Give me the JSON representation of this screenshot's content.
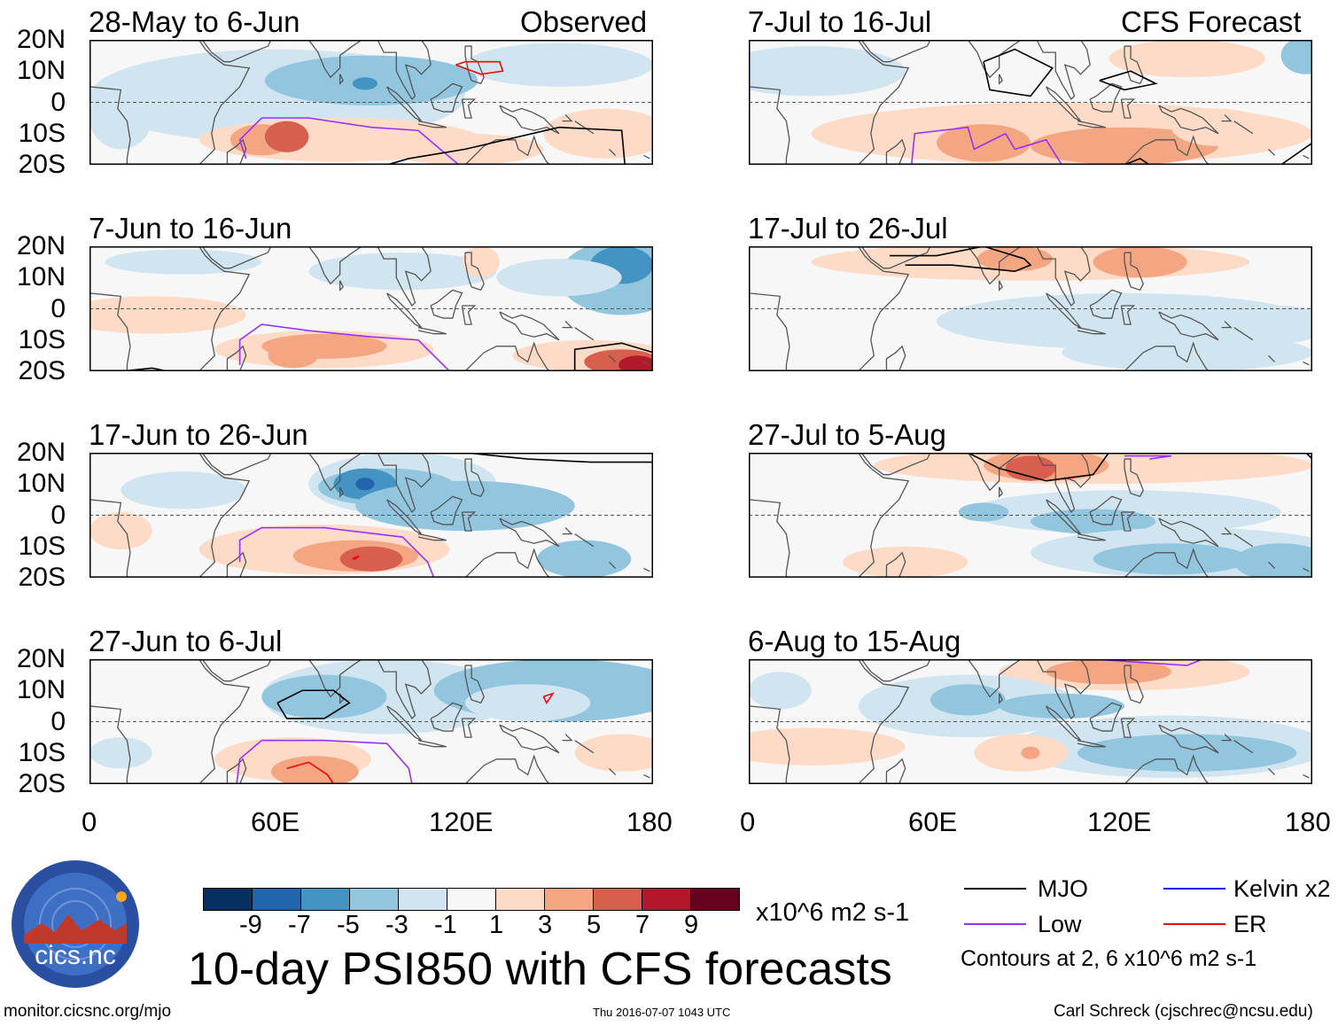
{
  "observed_label": "Observed",
  "forecast_label": "CFS Forecast",
  "panels": [
    {
      "title": "28-May to 6-Jun"
    },
    {
      "title": "7-Jun to 16-Jun"
    },
    {
      "title": "17-Jun to 26-Jun"
    },
    {
      "title": "27-Jun to 6-Jul"
    },
    {
      "title": "7-Jul to 16-Jul"
    },
    {
      "title": "17-Jul to 26-Jul"
    },
    {
      "title": "27-Jul to 5-Aug"
    },
    {
      "title": "6-Aug to 15-Aug"
    }
  ],
  "lat_labels": [
    "20N",
    "10N",
    "0",
    "10S",
    "20S"
  ],
  "lon_labels": [
    "0",
    "60E",
    "120E",
    "180"
  ],
  "colorbar": {
    "colors": [
      "#053061",
      "#2166ac",
      "#4393c3",
      "#92c5de",
      "#d1e5f0",
      "#f7f7f7",
      "#fddbc7",
      "#f4a582",
      "#d6604d",
      "#b2182b",
      "#67001f"
    ],
    "ticks": [
      "-9",
      "-7",
      "-5",
      "-3",
      "-1",
      "1",
      "3",
      "5",
      "7",
      "9"
    ],
    "units": "x10^6 m2 s-1"
  },
  "title": "10-day PSI850 with CFS forecasts",
  "legend": {
    "items": [
      {
        "label": "MJO",
        "color": "#000000"
      },
      {
        "label": "Kelvin x2",
        "color": "#1a1aff"
      },
      {
        "label": "Low",
        "color": "#9b30ff"
      },
      {
        "label": "ER",
        "color": "#ff0000"
      }
    ],
    "contours_note": "Contours at 2, 6 x10^6 m2 s-1"
  },
  "logo_text": "cics.nc",
  "logo_ring_text": "Cooperative Institute for Climate and Satellites",
  "footer": {
    "url": "monitor.cicsnc.org/mjo",
    "timestamp": "Thu 2016-07-07 1043 UTC",
    "credit": "Carl Schreck (cjschrec@ncsu.edu)"
  }
}
